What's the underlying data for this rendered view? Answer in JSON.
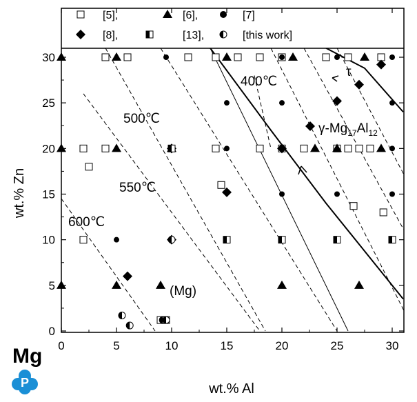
{
  "chart_data": {
    "type": "scatter",
    "title": "",
    "xlabel": "wt.% Al",
    "ylabel": "wt.% Zn",
    "xlim": [
      0,
      31
    ],
    "ylim": [
      0,
      31
    ],
    "x_ticks": [
      0,
      5,
      10,
      15,
      20,
      25,
      30
    ],
    "y_ticks": [
      0,
      5,
      10,
      15,
      20,
      25,
      30
    ],
    "grid": false,
    "legend_position": "top",
    "colors": {
      "ink": "#000000",
      "logo": "#1a8fd6"
    },
    "series": [
      {
        "name": "[5],",
        "marker": "open-square",
        "points": [
          [
            4,
            30
          ],
          [
            6,
            30
          ],
          [
            11.5,
            30
          ],
          [
            14,
            30
          ],
          [
            16,
            30
          ],
          [
            18,
            30
          ],
          [
            20,
            30
          ],
          [
            24,
            30
          ],
          [
            26,
            30
          ],
          [
            29,
            30
          ],
          [
            2,
            20
          ],
          [
            4,
            20
          ],
          [
            14,
            20
          ],
          [
            18,
            20
          ],
          [
            20,
            20
          ],
          [
            22,
            20
          ],
          [
            25,
            20
          ],
          [
            26,
            20
          ],
          [
            27,
            20
          ],
          [
            28,
            20
          ],
          [
            2.5,
            18
          ],
          [
            14.5,
            16
          ],
          [
            26.5,
            13.7
          ],
          [
            29.2,
            13
          ],
          [
            2,
            10
          ],
          [
            9,
            1.2
          ]
        ]
      },
      {
        "name": "[6],",
        "marker": "filled-triangle",
        "points": [
          [
            0,
            30
          ],
          [
            5,
            30
          ],
          [
            15,
            30
          ],
          [
            21,
            30
          ],
          [
            27.5,
            30
          ],
          [
            0,
            20
          ],
          [
            5,
            20
          ],
          [
            10,
            20
          ],
          [
            23,
            20
          ],
          [
            25,
            20
          ],
          [
            29,
            20
          ],
          [
            0,
            5
          ],
          [
            5,
            5
          ],
          [
            9,
            5
          ],
          [
            20,
            5
          ],
          [
            27,
            5
          ]
        ]
      },
      {
        "name": "[7]",
        "marker": "filled-circle",
        "points": [
          [
            9.5,
            30
          ],
          [
            20,
            30
          ],
          [
            25,
            30
          ],
          [
            30,
            30
          ],
          [
            15,
            25
          ],
          [
            20,
            25
          ],
          [
            30,
            25
          ],
          [
            15,
            20
          ],
          [
            30,
            20
          ],
          [
            20,
            15
          ],
          [
            25,
            15
          ],
          [
            30,
            15
          ],
          [
            5,
            10
          ],
          [
            30,
            10
          ]
        ]
      },
      {
        "name": "[8],",
        "marker": "filled-diamond",
        "points": [
          [
            29,
            29.2
          ],
          [
            27,
            27
          ],
          [
            25,
            25.2
          ],
          [
            20,
            20
          ],
          [
            10,
            20
          ],
          [
            15,
            15.2
          ],
          [
            10,
            10
          ],
          [
            6,
            6
          ]
        ]
      },
      {
        "name": "[13],",
        "marker": "half-square",
        "points": [
          [
            10,
            20
          ],
          [
            15,
            10
          ],
          [
            20,
            10
          ],
          [
            25,
            10
          ],
          [
            30,
            10
          ],
          [
            9.5,
            1.2
          ]
        ]
      },
      {
        "name": "[this work]",
        "marker": "half-circle",
        "points": [
          [
            5.5,
            1.7
          ],
          [
            6.2,
            0.6
          ],
          [
            9.2,
            1.2
          ],
          [
            9.5,
            1.2
          ],
          [
            10,
            10
          ]
        ]
      }
    ],
    "isotherms": [
      {
        "name": "400℃",
        "points": [
          [
            19,
            31
          ],
          [
            32,
            0
          ]
        ],
        "label_style": "dashed"
      },
      {
        "name": "500℃",
        "points": [
          [
            13.5,
            31
          ],
          [
            26,
            0
          ]
        ],
        "label_style": "solid-thin"
      },
      {
        "name": "550℃",
        "points": [
          [
            2,
            26
          ],
          [
            18,
            0
          ]
        ],
        "label_style": "dashed"
      },
      {
        "name": "600℃",
        "points": [
          [
            0,
            14.5
          ],
          [
            8.5,
            0
          ]
        ],
        "label_style": "dashed"
      }
    ],
    "extra_dashed_lines": [
      [
        [
          4,
          31
        ],
        [
          18.5,
          0
        ]
      ],
      [
        [
          9,
          31
        ],
        [
          25,
          0
        ]
      ],
      [
        [
          22,
          31
        ],
        [
          32,
          9
        ]
      ],
      [
        [
          25,
          31
        ],
        [
          32,
          15
        ]
      ]
    ],
    "boundaries": [
      {
        "name": "tau",
        "points": [
          [
            24,
            31
          ],
          [
            27.5,
            28.8
          ],
          [
            31,
            24
          ]
        ]
      },
      {
        "name": "gamma",
        "points": [
          [
            13.5,
            31
          ],
          [
            19,
            22
          ],
          [
            24,
            14
          ],
          [
            27,
            9.5
          ],
          [
            31,
            3.5
          ]
        ]
      }
    ],
    "annotations": {
      "t400": "400℃",
      "t500": "500℃",
      "t550": "550℃",
      "t600": "600℃",
      "mg_region": "(Mg)",
      "tau": "τ",
      "gamma_prefix": "γ-Mg",
      "gamma_sub1": "17",
      "gamma_mid": "Al",
      "gamma_sub2": "12"
    }
  },
  "logo": {
    "text": "Mg",
    "badge_letter": "P"
  }
}
